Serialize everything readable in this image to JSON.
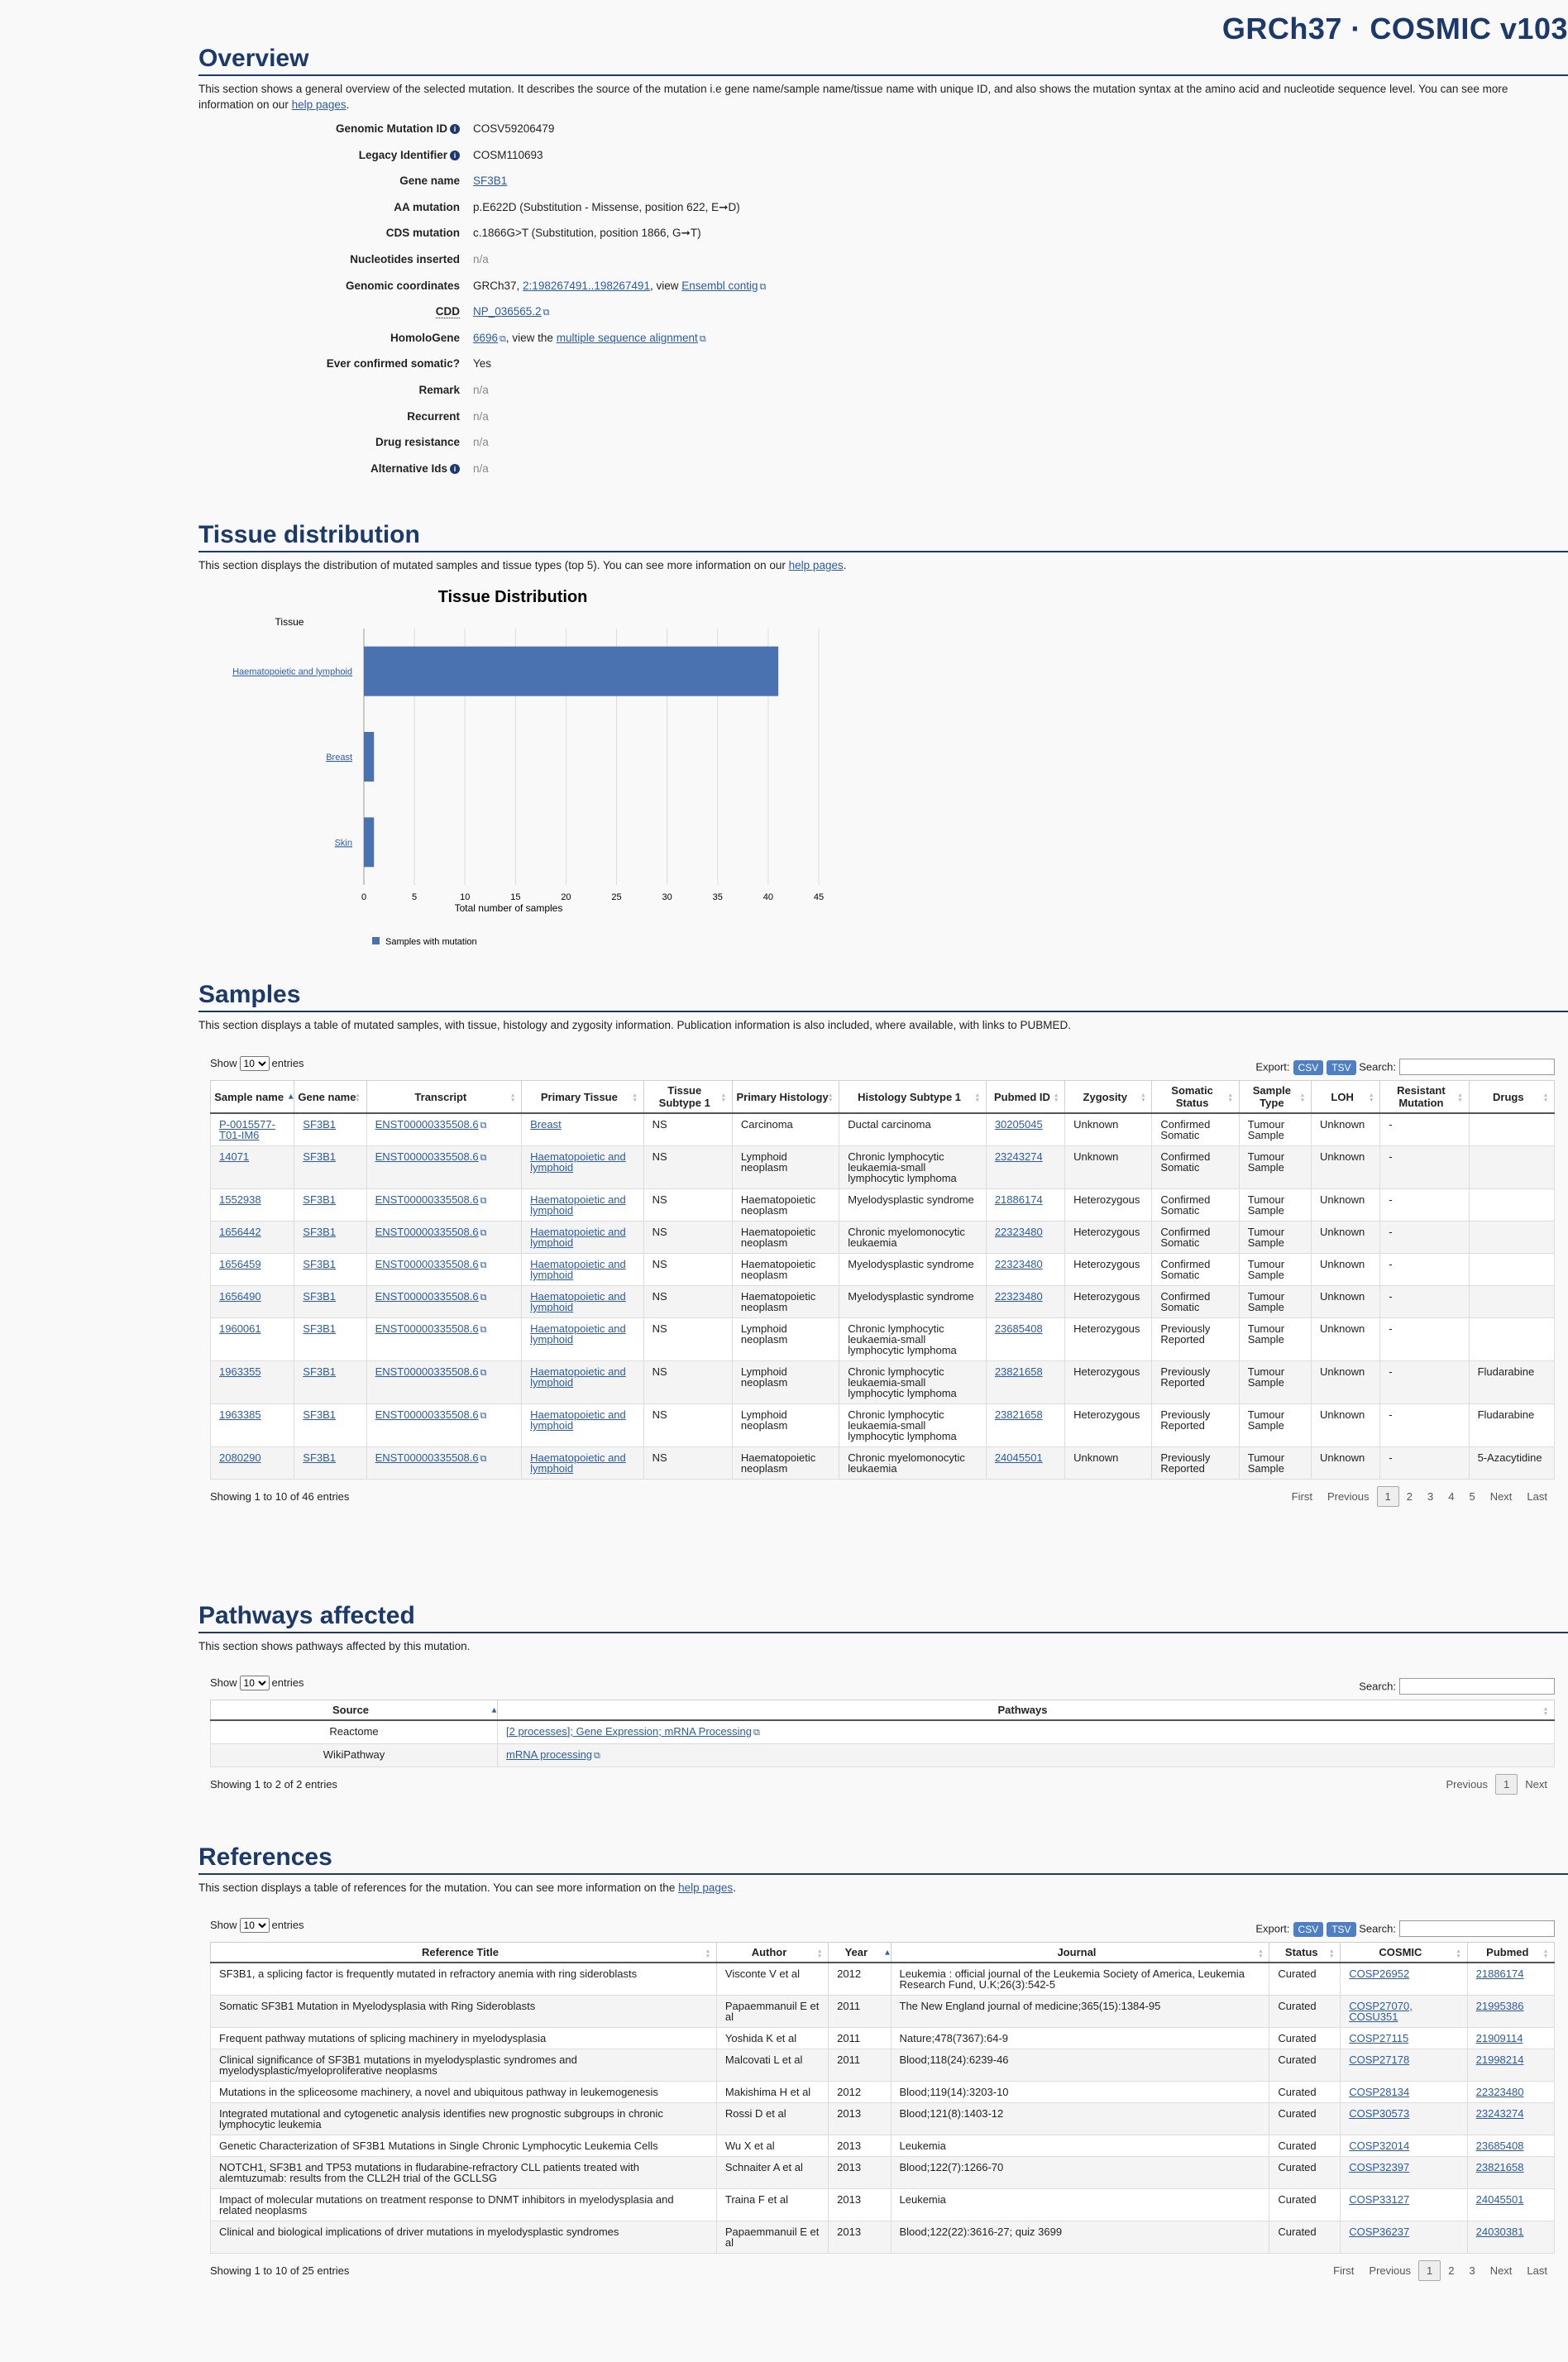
{
  "brand": "GRCh37 · COSMIC v103",
  "overview": {
    "title": "Overview",
    "description": "This section shows a general overview of the selected mutation. It describes the source of the mutation i.e gene name/sample name/tissue name with unique ID, and also shows the mutation syntax at the amino acid and nucleotide sequence level. You can see more information on our",
    "help_link": "help pages",
    "rows": [
      {
        "label": "Genomic Mutation ID",
        "value": "COSV59206479"
      },
      {
        "label": "Legacy Identifier",
        "value": "COSM110693"
      },
      {
        "label": "Gene name",
        "value": "SF3B1"
      },
      {
        "label": "AA mutation",
        "value": "p.E622D (Substitution - Missense, position 622, E➞D)"
      },
      {
        "label": "CDS mutation",
        "value": "c.1866G>T (Substitution, position 1866, G➞T)"
      },
      {
        "label": "Nucleotides inserted",
        "value": "n/a"
      },
      {
        "label": "Genomic coordinates",
        "value": "GRCh37,",
        "link": "2:198267491..198267491",
        "mid": ", view",
        "link2": "Ensembl contig"
      },
      {
        "label": "CDD",
        "value": "NP_036565.2"
      },
      {
        "label": "HomoloGene",
        "value": "6696",
        "mid": ", view the",
        "link2": "multiple sequence alignment"
      },
      {
        "label": "Ever confirmed somatic?",
        "value": "Yes"
      },
      {
        "label": "Remark",
        "value": "n/a"
      },
      {
        "label": "Recurrent",
        "value": "n/a"
      },
      {
        "label": "Drug resistance",
        "value": "n/a"
      },
      {
        "label": "Alternative Ids",
        "value": "n/a"
      }
    ]
  },
  "tissue": {
    "title": "Tissue distribution",
    "description": "This section displays the distribution of mutated samples and tissue types (top 5). You can see more information on our",
    "help_link": "help pages"
  },
  "chart_data": {
    "type": "bar",
    "orientation": "horizontal",
    "title": "Tissue Distribution",
    "ylabel": "Tissue",
    "xlabel": "Total number of samples",
    "categories": [
      "Haematopoietic and lymphoid",
      "Breast",
      "Skin"
    ],
    "series": [
      {
        "name": "Samples with mutation",
        "values": [
          41,
          1,
          1
        ],
        "color": "#4a72b0"
      }
    ],
    "xlim": [
      0,
      45
    ],
    "xticks": [
      0,
      5,
      10,
      15,
      20,
      25,
      30,
      35,
      40,
      45
    ],
    "grid": true,
    "legend": "bottom-left"
  },
  "samples": {
    "title": "Samples",
    "description": "This section displays a table of mutated samples, with tissue, histology and zygosity information. Publication information is also included, where available, with links to PUBMED.",
    "show": "Show",
    "entries": "entries",
    "page_len": "10",
    "export": "Export:",
    "csv": "CSV",
    "tsv": "TSV",
    "search": "Search:",
    "headers": [
      "Sample name",
      "Gene name",
      "Transcript",
      "Primary Tissue",
      "Tissue Subtype 1",
      "Primary Histology",
      "Histology Subtype 1",
      "Pubmed ID",
      "Zygosity",
      "Somatic Status",
      "Sample Type",
      "LOH",
      "Resistant Mutation",
      "Drugs"
    ],
    "rows": [
      [
        "P-0015577-T01-IM6",
        "SF3B1",
        "ENST00000335508.6",
        "Breast",
        "NS",
        "Carcinoma",
        "Ductal carcinoma",
        "30205045",
        "Unknown",
        "Confirmed Somatic",
        "Tumour Sample",
        "Unknown",
        "-",
        ""
      ],
      [
        "14071",
        "SF3B1",
        "ENST00000335508.6",
        "Haematopoietic and lymphoid",
        "NS",
        "Lymphoid neoplasm",
        "Chronic lymphocytic leukaemia-small lymphocytic lymphoma",
        "23243274",
        "Unknown",
        "Confirmed Somatic",
        "Tumour Sample",
        "Unknown",
        "-",
        ""
      ],
      [
        "1552938",
        "SF3B1",
        "ENST00000335508.6",
        "Haematopoietic and lymphoid",
        "NS",
        "Haematopoietic neoplasm",
        "Myelodysplastic syndrome",
        "21886174",
        "Heterozygous",
        "Confirmed Somatic",
        "Tumour Sample",
        "Unknown",
        "-",
        ""
      ],
      [
        "1656442",
        "SF3B1",
        "ENST00000335508.6",
        "Haematopoietic and lymphoid",
        "NS",
        "Haematopoietic neoplasm",
        "Chronic myelomonocytic leukaemia",
        "22323480",
        "Heterozygous",
        "Confirmed Somatic",
        "Tumour Sample",
        "Unknown",
        "-",
        ""
      ],
      [
        "1656459",
        "SF3B1",
        "ENST00000335508.6",
        "Haematopoietic and lymphoid",
        "NS",
        "Haematopoietic neoplasm",
        "Myelodysplastic syndrome",
        "22323480",
        "Heterozygous",
        "Confirmed Somatic",
        "Tumour Sample",
        "Unknown",
        "-",
        ""
      ],
      [
        "1656490",
        "SF3B1",
        "ENST00000335508.6",
        "Haematopoietic and lymphoid",
        "NS",
        "Haematopoietic neoplasm",
        "Myelodysplastic syndrome",
        "22323480",
        "Heterozygous",
        "Confirmed Somatic",
        "Tumour Sample",
        "Unknown",
        "-",
        ""
      ],
      [
        "1960061",
        "SF3B1",
        "ENST00000335508.6",
        "Haematopoietic and lymphoid",
        "NS",
        "Lymphoid neoplasm",
        "Chronic lymphocytic leukaemia-small lymphocytic lymphoma",
        "23685408",
        "Heterozygous",
        "Previously Reported",
        "Tumour Sample",
        "Unknown",
        "-",
        ""
      ],
      [
        "1963355",
        "SF3B1",
        "ENST00000335508.6",
        "Haematopoietic and lymphoid",
        "NS",
        "Lymphoid neoplasm",
        "Chronic lymphocytic leukaemia-small lymphocytic lymphoma",
        "23821658",
        "Heterozygous",
        "Previously Reported",
        "Tumour Sample",
        "Unknown",
        "-",
        "Fludarabine"
      ],
      [
        "1963385",
        "SF3B1",
        "ENST00000335508.6",
        "Haematopoietic and lymphoid",
        "NS",
        "Lymphoid neoplasm",
        "Chronic lymphocytic leukaemia-small lymphocytic lymphoma",
        "23821658",
        "Heterozygous",
        "Previously Reported",
        "Tumour Sample",
        "Unknown",
        "-",
        "Fludarabine"
      ],
      [
        "2080290",
        "SF3B1",
        "ENST00000335508.6",
        "Haematopoietic and lymphoid",
        "NS",
        "Haematopoietic neoplasm",
        "Chronic myelomonocytic leukaemia",
        "24045501",
        "Unknown",
        "Previously Reported",
        "Tumour Sample",
        "Unknown",
        "-",
        "5-Azacytidine"
      ]
    ],
    "info": "Showing 1 to 10 of 46 entries",
    "pager": [
      "First",
      "Previous",
      "1",
      "2",
      "3",
      "4",
      "5",
      "Next",
      "Last"
    ]
  },
  "pathways": {
    "title": "Pathways affected",
    "description": "This section shows pathways affected by this mutation.",
    "show": "Show",
    "entries": "entries",
    "page_len": "10",
    "search": "Search:",
    "headers": [
      "Source",
      "Pathways"
    ],
    "rows": [
      [
        "Reactome",
        "[2 processes]; Gene Expression; mRNA Processing"
      ],
      [
        "WikiPathway",
        "mRNA processing"
      ]
    ],
    "info": "Showing 1 to 2 of 2 entries",
    "pager": [
      "Previous",
      "1",
      "Next"
    ]
  },
  "references": {
    "title": "References",
    "description": "This section displays a table of references for the mutation. You can see more information on the",
    "help_link": "help pages",
    "show": "Show",
    "entries": "entries",
    "page_len": "10",
    "export": "Export:",
    "csv": "CSV",
    "tsv": "TSV",
    "search": "Search:",
    "headers": [
      "Reference Title",
      "Author",
      "Year",
      "Journal",
      "Status",
      "COSMIC",
      "Pubmed"
    ],
    "rows": [
      [
        "SF3B1, a splicing factor is frequently mutated in refractory anemia with ring sideroblasts",
        "Visconte V et al",
        "2012",
        "Leukemia : official journal of the Leukemia Society of America, Leukemia Research Fund, U.K;26(3):542-5",
        "Curated",
        "COSP26952",
        "21886174"
      ],
      [
        "Somatic SF3B1 Mutation in Myelodysplasia with Ring Sideroblasts",
        "Papaemmanuil E et al",
        "2011",
        "The New England journal of medicine;365(15):1384-95",
        "Curated",
        "COSP27070, COSU351",
        "21995386"
      ],
      [
        "Frequent pathway mutations of splicing machinery in myelodysplasia",
        "Yoshida K et al",
        "2011",
        "Nature;478(7367):64-9",
        "Curated",
        "COSP27115",
        "21909114"
      ],
      [
        "Clinical significance of SF3B1 mutations in myelodysplastic syndromes and myelodysplastic/myeloproliferative neoplasms",
        "Malcovati L et al",
        "2011",
        "Blood;118(24):6239-46",
        "Curated",
        "COSP27178",
        "21998214"
      ],
      [
        "Mutations in the spliceosome machinery, a novel and ubiquitous pathway in leukemogenesis",
        "Makishima H et al",
        "2012",
        "Blood;119(14):3203-10",
        "Curated",
        "COSP28134",
        "22323480"
      ],
      [
        "Integrated mutational and cytogenetic analysis identifies new prognostic subgroups in chronic lymphocytic leukemia",
        "Rossi D et al",
        "2013",
        "Blood;121(8):1403-12",
        "Curated",
        "COSP30573",
        "23243274"
      ],
      [
        "Genetic Characterization of SF3B1 Mutations in Single Chronic Lymphocytic Leukemia Cells",
        "Wu X et al",
        "2013",
        "Leukemia",
        "Curated",
        "COSP32014",
        "23685408"
      ],
      [
        "NOTCH1, SF3B1 and TP53 mutations in fludarabine-refractory CLL patients treated with alemtuzumab: results from the CLL2H trial of the GCLLSG",
        "Schnaiter A et al",
        "2013",
        "Blood;122(7):1266-70",
        "Curated",
        "COSP32397",
        "23821658"
      ],
      [
        "Impact of molecular mutations on treatment response to DNMT inhibitors in myelodysplasia and related neoplasms",
        "Traina F et al",
        "2013",
        "Leukemia",
        "Curated",
        "COSP33127",
        "24045501"
      ],
      [
        "Clinical and biological implications of driver mutations in myelodysplastic syndromes",
        "Papaemmanuil E et al",
        "2013",
        "Blood;122(22):3616-27; quiz 3699",
        "Curated",
        "COSP36237",
        "24030381"
      ]
    ],
    "info": "Showing 1 to 10 of 25 entries",
    "pager": [
      "First",
      "Previous",
      "1",
      "2",
      "3",
      "Next",
      "Last"
    ]
  }
}
